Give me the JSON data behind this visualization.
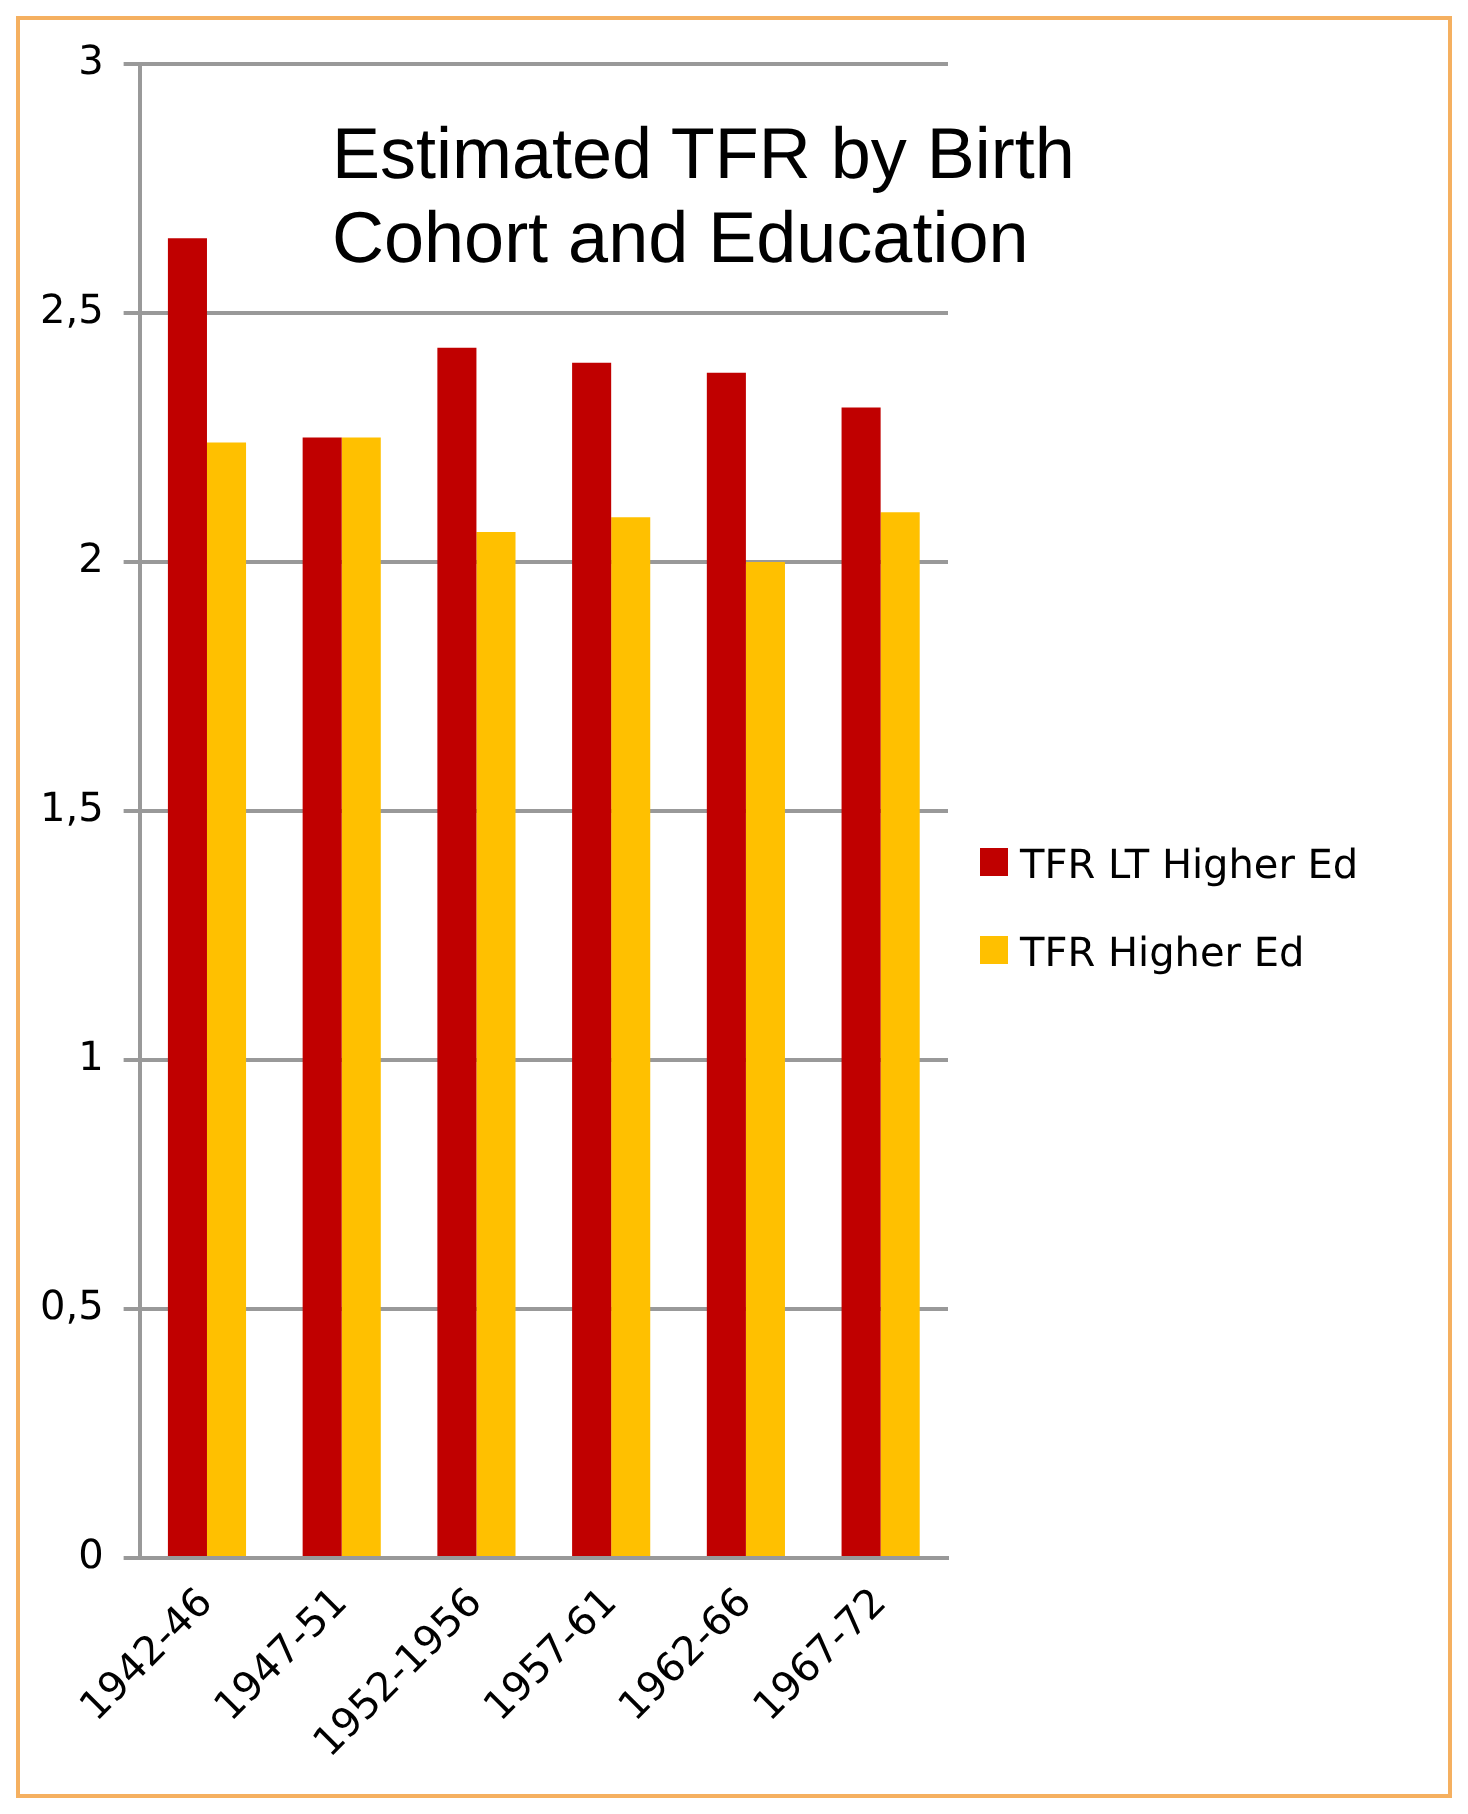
{
  "chart_data": {
    "type": "bar",
    "title": "Estimated TFR by Birth Cohort and Education",
    "categories": [
      "1942-46",
      "1947-51",
      "1952-1956",
      "1957-61",
      "1962-66",
      "1967-72"
    ],
    "series": [
      {
        "name": "TFR LT Higher Ed",
        "color": "#c00000",
        "values": [
          2.65,
          2.25,
          2.43,
          2.4,
          2.38,
          2.31
        ]
      },
      {
        "name": "TFR Higher Ed",
        "color": "#ffc000",
        "values": [
          2.24,
          2.25,
          2.06,
          2.09,
          2.0,
          2.1
        ]
      }
    ],
    "ylim": [
      0,
      3
    ],
    "yticks": [
      0,
      {
        "value": 0.5,
        "label": "0,5"
      },
      1,
      {
        "value": 1.5,
        "label": "1,5"
      },
      2,
      {
        "value": 2.5,
        "label": "2,5"
      },
      3
    ],
    "grid": "y",
    "legend": "right"
  }
}
